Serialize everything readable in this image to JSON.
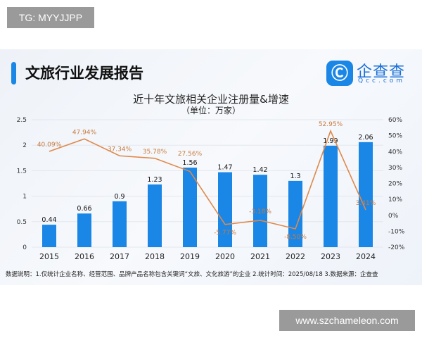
{
  "watermark_top": "TG: MYYJJPP",
  "watermark_bottom": "www.szchameleon.com",
  "header": {
    "title": "文旅行业发展报告",
    "logo_name": "企查查",
    "logo_sub": "Qcc.com"
  },
  "note": "数据说明：1.仅统计企业名称、经营范围、品牌产品名称包含关键词“文旅、文化旅游”的企业   2.统计时间：2025/08/18    3.数据来源：企查查",
  "chart_data": {
    "type": "bar+line",
    "title": "近十年文旅相关企业注册量&增速",
    "subtitle": "（单位：万家）",
    "categories": [
      "2015",
      "2016",
      "2017",
      "2018",
      "2019",
      "2020",
      "2021",
      "2022",
      "2023",
      "2024"
    ],
    "series": [
      {
        "type": "bar",
        "axis": "left",
        "values": [
          0.44,
          0.66,
          0.9,
          1.23,
          1.56,
          1.47,
          1.42,
          1.3,
          1.99,
          2.06
        ],
        "labels": [
          "0.44",
          "0.66",
          "0.9",
          "1.23",
          "1.56",
          "1.47",
          "1.42",
          "1.3",
          "1.99",
          "2.06"
        ],
        "color": "#1a86e6"
      },
      {
        "type": "line",
        "axis": "right",
        "values": [
          40.09,
          47.94,
          37.34,
          35.78,
          27.56,
          -5.77,
          -3.18,
          -8.5,
          52.95,
          3.41
        ],
        "labels": [
          "40.09%",
          "47.94%",
          "37.34%",
          "35.78%",
          "27.56%",
          "-5.77%",
          "-3.18%",
          "-8.50%",
          "52.95%",
          "3.41%"
        ],
        "color": "#e0894a"
      }
    ],
    "y_left": {
      "range": [
        0,
        2.5
      ],
      "ticks": [
        "0",
        "0.5",
        "1",
        "1.5",
        "2",
        "2.5"
      ]
    },
    "y_right": {
      "range": [
        -20,
        60
      ],
      "ticks": [
        "-20%",
        "-10%",
        "0%",
        "10%",
        "20%",
        "30%",
        "40%",
        "50%",
        "60%"
      ]
    },
    "grid": true
  }
}
